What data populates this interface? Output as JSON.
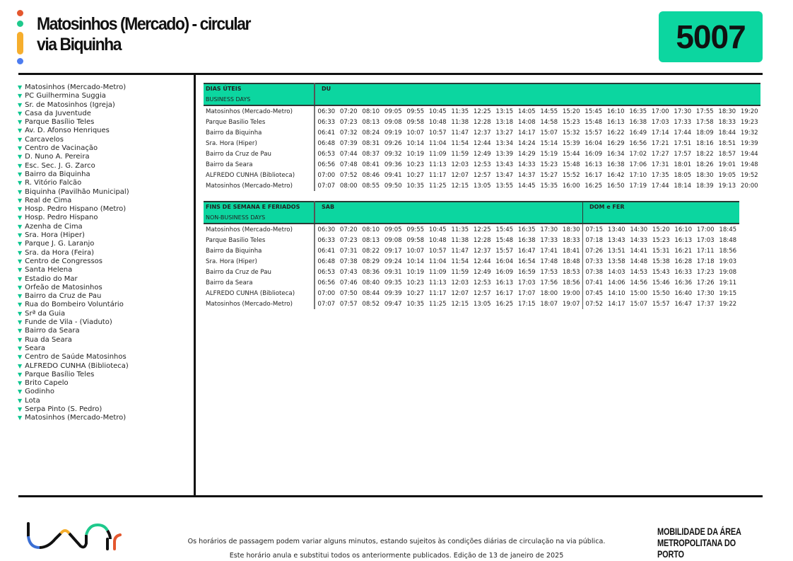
{
  "title": {
    "line1": "Matosinhos (Mercado) - circular",
    "line2": "via Biquinha"
  },
  "route_number": "5007",
  "colors": {
    "accent": "#0cd6a0",
    "dot_red": "#e4572e",
    "dot_green": "#1ec98c",
    "dot_yellow": "#f6ae2d",
    "dot_blue": "#4c7cf0"
  },
  "stops": [
    "Matosinhos (Mercado-Metro)",
    "PC Guilhermina Suggia",
    "Sr. de Matosinhos (Igreja)",
    "Casa da Juventude",
    "Parque Basílio Teles",
    "Av. D. Afonso Henriques",
    "Carcavelos",
    "Centro de Vacinação",
    "D. Nuno A. Pereira",
    "Esc. Sec. J. G. Zarco",
    "Bairro da Biquinha",
    "R. Vitório Falcão",
    "Biquinha (Pavilhão Municipal)",
    "Real de Cima",
    "Hosp. Pedro Hispano (Metro)",
    "Hosp. Pedro Hispano",
    "Azenha de Cima",
    "Sra. Hora (Hiper)",
    "Parque J. G. Laranjo",
    "Sra. da Hora (Feira)",
    "Centro de Congressos",
    "Santa Helena",
    "Estadio do Mar",
    "Orfeão de Matosinhos",
    "Bairro da Cruz de Pau",
    "Rua do Bombeiro Voluntário",
    "Srª da Guia",
    "Funde de Vila - (Viaduto)",
    "Bairro da Seara",
    "Rua da Seara",
    "Seara",
    "Centro de Saúde Matosinhos",
    "ALFREDO CUNHA (Biblioteca)",
    "Parque Basílio Teles",
    "Brito Capelo",
    "Godinho",
    "Lota",
    "Serpa Pinto (S. Pedro)",
    "Matosinhos (Mercado-Metro)"
  ],
  "stop_icon": "triangle-down-icon",
  "weekday": {
    "title": "DIAS ÚTEIS",
    "subtitle": "BUSINESS DAYS",
    "groups": [
      {
        "label": "DU",
        "count": 20
      }
    ],
    "rows": [
      {
        "stop": "Matosinhos (Mercado-Metro)",
        "times": [
          "06:30",
          "07:20",
          "08:10",
          "09:05",
          "09:55",
          "10:45",
          "11:35",
          "12:25",
          "13:15",
          "14:05",
          "14:55",
          "15:20",
          "15:45",
          "16:10",
          "16:35",
          "17:00",
          "17:30",
          "17:55",
          "18:30",
          "19:20"
        ]
      },
      {
        "stop": "Parque Basilio Teles",
        "times": [
          "06:33",
          "07:23",
          "08:13",
          "09:08",
          "09:58",
          "10:48",
          "11:38",
          "12:28",
          "13:18",
          "14:08",
          "14:58",
          "15:23",
          "15:48",
          "16:13",
          "16:38",
          "17:03",
          "17:33",
          "17:58",
          "18:33",
          "19:23"
        ]
      },
      {
        "stop": "Bairro da Biquinha",
        "times": [
          "06:41",
          "07:32",
          "08:24",
          "09:19",
          "10:07",
          "10:57",
          "11:47",
          "12:37",
          "13:27",
          "14:17",
          "15:07",
          "15:32",
          "15:57",
          "16:22",
          "16:49",
          "17:14",
          "17:44",
          "18:09",
          "18:44",
          "19:32"
        ]
      },
      {
        "stop": "Sra. Hora (Hiper)",
        "times": [
          "06:48",
          "07:39",
          "08:31",
          "09:26",
          "10:14",
          "11:04",
          "11:54",
          "12:44",
          "13:34",
          "14:24",
          "15:14",
          "15:39",
          "16:04",
          "16:29",
          "16:56",
          "17:21",
          "17:51",
          "18:16",
          "18:51",
          "19:39"
        ]
      },
      {
        "stop": "Bairro da Cruz de Pau",
        "times": [
          "06:53",
          "07:44",
          "08:37",
          "09:32",
          "10:19",
          "11:09",
          "11:59",
          "12:49",
          "13:39",
          "14:29",
          "15:19",
          "15:44",
          "16:09",
          "16:34",
          "17:02",
          "17:27",
          "17:57",
          "18:22",
          "18:57",
          "19:44"
        ]
      },
      {
        "stop": "Bairro da Seara",
        "times": [
          "06:56",
          "07:48",
          "08:41",
          "09:36",
          "10:23",
          "11:13",
          "12:03",
          "12:53",
          "13:43",
          "14:33",
          "15:23",
          "15:48",
          "16:13",
          "16:38",
          "17:06",
          "17:31",
          "18:01",
          "18:26",
          "19:01",
          "19:48"
        ]
      },
      {
        "stop": "ALFREDO CUNHA (Biblioteca)",
        "times": [
          "07:00",
          "07:52",
          "08:46",
          "09:41",
          "10:27",
          "11:17",
          "12:07",
          "12:57",
          "13:47",
          "14:37",
          "15:27",
          "15:52",
          "16:17",
          "16:42",
          "17:10",
          "17:35",
          "18:05",
          "18:30",
          "19:05",
          "19:52"
        ]
      },
      {
        "stop": "Matosinhos (Mercado-Metro)",
        "times": [
          "07:07",
          "08:00",
          "08:55",
          "09:50",
          "10:35",
          "11:25",
          "12:15",
          "13:05",
          "13:55",
          "14:45",
          "15:35",
          "16:00",
          "16:25",
          "16:50",
          "17:19",
          "17:44",
          "18:14",
          "18:39",
          "19:13",
          "20:00"
        ]
      }
    ]
  },
  "weekend": {
    "title": "FINS DE SEMANA E FERIADOS",
    "subtitle": "NON-BUSINESS DAYS",
    "groups": [
      {
        "label": "SAB",
        "count": 12
      },
      {
        "label": "DOM e FER",
        "count": 7
      }
    ],
    "rows": [
      {
        "stop": "Matosinhos (Mercado-Metro)",
        "times": [
          "06:30",
          "07:20",
          "08:10",
          "09:05",
          "09:55",
          "10:45",
          "11:35",
          "12:25",
          "15:45",
          "16:35",
          "17:30",
          "18:30",
          "07:15",
          "13:40",
          "14:30",
          "15:20",
          "16:10",
          "17:00",
          "18:45"
        ]
      },
      {
        "stop": "Parque Basilio Teles",
        "times": [
          "06:33",
          "07:23",
          "08:13",
          "09:08",
          "09:58",
          "10:48",
          "11:38",
          "12:28",
          "15:48",
          "16:38",
          "17:33",
          "18:33",
          "07:18",
          "13:43",
          "14:33",
          "15:23",
          "16:13",
          "17:03",
          "18:48"
        ]
      },
      {
        "stop": "Bairro da Biquinha",
        "times": [
          "06:41",
          "07:31",
          "08:22",
          "09:17",
          "10:07",
          "10:57",
          "11:47",
          "12:37",
          "15:57",
          "16:47",
          "17:41",
          "18:41",
          "07:26",
          "13:51",
          "14:41",
          "15:31",
          "16:21",
          "17:11",
          "18:56"
        ]
      },
      {
        "stop": "Sra. Hora (Hiper)",
        "times": [
          "06:48",
          "07:38",
          "08:29",
          "09:24",
          "10:14",
          "11:04",
          "11:54",
          "12:44",
          "16:04",
          "16:54",
          "17:48",
          "18:48",
          "07:33",
          "13:58",
          "14:48",
          "15:38",
          "16:28",
          "17:18",
          "19:03"
        ]
      },
      {
        "stop": "Bairro da Cruz de Pau",
        "times": [
          "06:53",
          "07:43",
          "08:36",
          "09:31",
          "10:19",
          "11:09",
          "11:59",
          "12:49",
          "16:09",
          "16:59",
          "17:53",
          "18:53",
          "07:38",
          "14:03",
          "14:53",
          "15:43",
          "16:33",
          "17:23",
          "19:08"
        ]
      },
      {
        "stop": "Bairro da Seara",
        "times": [
          "06:56",
          "07:46",
          "08:40",
          "09:35",
          "10:23",
          "11:13",
          "12:03",
          "12:53",
          "16:13",
          "17:03",
          "17:56",
          "18:56",
          "07:41",
          "14:06",
          "14:56",
          "15:46",
          "16:36",
          "17:26",
          "19:11"
        ]
      },
      {
        "stop": "ALFREDO CUNHA (Biblioteca)",
        "times": [
          "07:00",
          "07:50",
          "08:44",
          "09:39",
          "10:27",
          "11:17",
          "12:07",
          "12:57",
          "16:17",
          "17:07",
          "18:00",
          "19:00",
          "07:45",
          "14:10",
          "15:00",
          "15:50",
          "16:40",
          "17:30",
          "19:15"
        ]
      },
      {
        "stop": "Matosinhos (Mercado-Metro)",
        "times": [
          "07:07",
          "07:57",
          "08:52",
          "09:47",
          "10:35",
          "11:25",
          "12:15",
          "13:05",
          "16:25",
          "17:15",
          "18:07",
          "19:07",
          "07:52",
          "14:17",
          "15:07",
          "15:57",
          "16:47",
          "17:37",
          "19:22"
        ]
      }
    ]
  },
  "footer": {
    "line1": "Os horários de passagem podem variar alguns minutos, estando sujeitos às condições diárias de circulação na via pública.",
    "line2": "Este horário anula e substitui todos os anteriormente publicados. Edição de 13 de janeiro de 2025",
    "logo_left": "UNIR",
    "logo_right_line1": "MOBILIDADE DA ÁREA",
    "logo_right_line2": "METROPOLITANA DO PORTO"
  }
}
